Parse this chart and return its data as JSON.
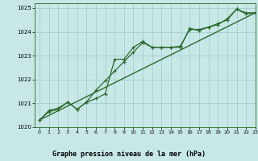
{
  "title": "Graphe pression niveau de la mer (hPa)",
  "bg_color": "#c8e8e8",
  "grid_color": "#a0c8c8",
  "line_color": "#2d6a2d",
  "xlim": [
    -0.5,
    23
  ],
  "ylim": [
    1020,
    1025.2
  ],
  "yticks": [
    1020,
    1021,
    1022,
    1023,
    1024,
    1025
  ],
  "xticks": [
    0,
    1,
    2,
    3,
    4,
    5,
    6,
    7,
    8,
    9,
    10,
    11,
    12,
    13,
    14,
    15,
    16,
    17,
    18,
    19,
    20,
    21,
    22,
    23
  ],
  "series1_x": [
    0,
    1,
    2,
    3,
    4,
    5,
    6,
    7,
    8,
    9,
    10,
    11,
    12,
    13,
    14,
    15,
    16,
    17,
    18,
    19,
    20,
    21,
    22,
    23
  ],
  "series1_y": [
    1020.3,
    1020.7,
    1020.8,
    1021.05,
    1020.75,
    1021.05,
    1021.2,
    1021.4,
    1022.85,
    1022.85,
    1023.35,
    1023.6,
    1023.35,
    1023.35,
    1023.35,
    1023.35,
    1024.15,
    1024.05,
    1024.2,
    1024.3,
    1024.55,
    1024.95,
    1024.75,
    1024.8
  ],
  "series2_x": [
    0,
    1,
    2,
    3,
    4,
    5,
    6,
    7,
    8,
    9,
    10,
    11,
    12,
    13,
    14,
    15,
    16,
    17,
    18,
    19,
    20,
    21,
    22,
    23
  ],
  "series2_y": [
    1020.3,
    1020.65,
    1020.75,
    1021.05,
    1020.75,
    1021.05,
    1021.55,
    1021.95,
    1022.35,
    1022.75,
    1023.15,
    1023.55,
    1023.35,
    1023.35,
    1023.35,
    1023.4,
    1024.1,
    1024.1,
    1024.2,
    1024.35,
    1024.5,
    1024.95,
    1024.8,
    1024.8
  ],
  "trend_x": [
    0,
    23
  ],
  "trend_y": [
    1020.3,
    1024.8
  ]
}
